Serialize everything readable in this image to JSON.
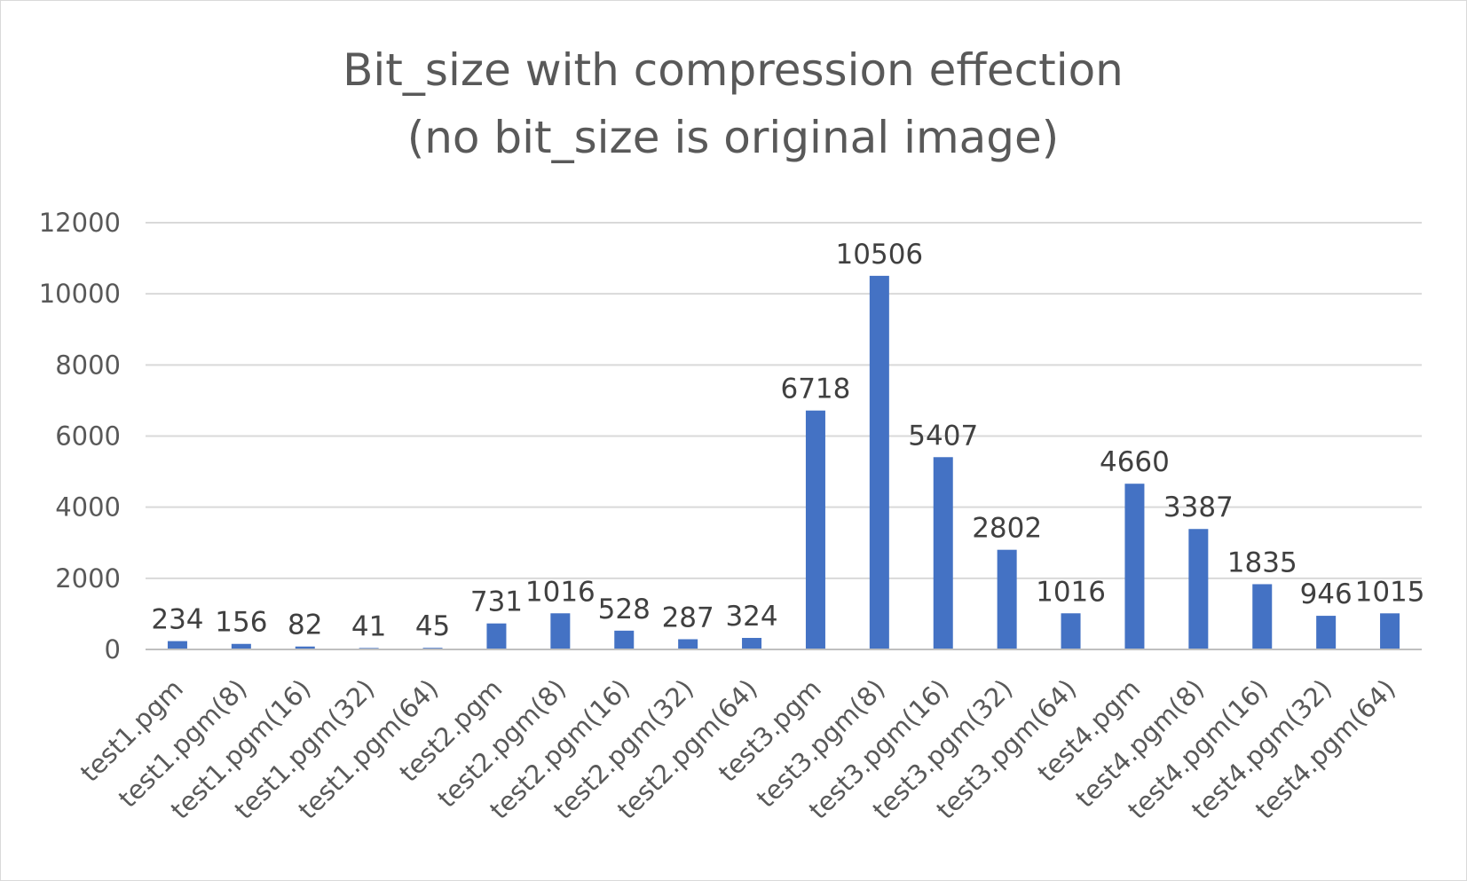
{
  "chart_data": {
    "type": "bar",
    "title_lines": [
      "Bit_size with compression effection",
      "(no bit_size is original image)"
    ],
    "xlabel": "",
    "ylabel": "",
    "ylim": [
      0,
      12000
    ],
    "yticks": [
      0,
      2000,
      4000,
      6000,
      8000,
      10000,
      12000
    ],
    "grid": true,
    "legend": "none",
    "bar_color": "#4472c4",
    "categories": [
      "test1.pgm",
      "test1.pgm(8)",
      "test1.pgm(16)",
      "test1.pgm(32)",
      "test1.pgm(64)",
      "test2.pgm",
      "test2.pgm(8)",
      "test2.pgm(16)",
      "test2.pgm(32)",
      "test2.pgm(64)",
      "test3.pgm",
      "test3.pgm(8)",
      "test3.pgm(16)",
      "test3.pgm(32)",
      "test3.pgm(64)",
      "test4.pgm",
      "test4.pgm(8)",
      "test4.pgm(16)",
      "test4.pgm(32)",
      "test4.pgm(64)"
    ],
    "values": [
      234,
      156,
      82,
      41,
      45,
      731,
      1016,
      528,
      287,
      324,
      6718,
      10506,
      5407,
      2802,
      1016,
      4660,
      3387,
      1835,
      946,
      1015
    ]
  }
}
